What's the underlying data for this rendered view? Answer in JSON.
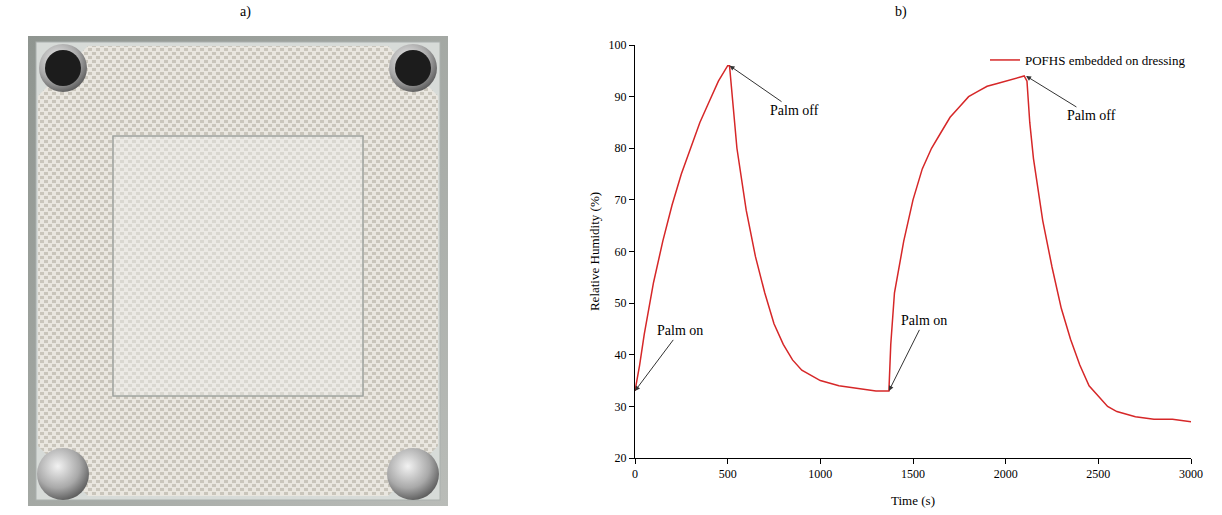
{
  "panel_labels": [
    "a)",
    "b)"
  ],
  "chart_data": {
    "type": "line",
    "x_label": "Time (s)",
    "y_label": "Relative Humidity (%)",
    "x": [
      0,
      25,
      50,
      100,
      150,
      200,
      250,
      300,
      350,
      400,
      450,
      500,
      510,
      530,
      550,
      600,
      650,
      700,
      750,
      800,
      850,
      900,
      950,
      1000,
      1100,
      1200,
      1300,
      1360,
      1370,
      1380,
      1400,
      1450,
      1500,
      1550,
      1600,
      1650,
      1700,
      1750,
      1800,
      1850,
      1900,
      1950,
      2000,
      2050,
      2100,
      2115,
      2130,
      2150,
      2200,
      2250,
      2300,
      2350,
      2400,
      2450,
      2500,
      2550,
      2600,
      2700,
      2800,
      2900,
      3000
    ],
    "series": [
      {
        "name": "POFHS embedded on dressing",
        "color": "#d62728",
        "values": [
          33,
          38,
          44,
          54,
          62,
          69,
          75,
          80,
          85,
          89,
          93,
          96,
          96,
          88,
          80,
          68,
          59,
          52,
          46,
          42,
          39,
          37,
          36,
          35,
          34,
          33.5,
          33,
          33,
          33,
          42,
          52,
          62,
          70,
          76,
          80,
          83,
          86,
          88,
          90,
          91,
          92,
          92.5,
          93,
          93.5,
          94,
          93,
          85,
          78,
          66,
          57,
          49,
          43,
          38,
          34,
          32,
          30,
          29,
          28,
          27.5,
          27.5,
          27
        ]
      }
    ],
    "xlim": [
      0,
      3000
    ],
    "xticks": [
      0,
      500,
      1000,
      1500,
      2000,
      2500,
      3000
    ],
    "ylim": [
      20,
      100
    ],
    "yticks": [
      20,
      30,
      40,
      50,
      60,
      70,
      80,
      90,
      100
    ],
    "grid": false,
    "legend": "top-right",
    "annotations": [
      {
        "text": "Palm on",
        "x": 0,
        "y": 33
      },
      {
        "text": "Palm off",
        "x": 510,
        "y": 96
      },
      {
        "text": "Palm on",
        "x": 1370,
        "y": 33
      },
      {
        "text": "Palm off",
        "x": 2110,
        "y": 94
      }
    ]
  }
}
